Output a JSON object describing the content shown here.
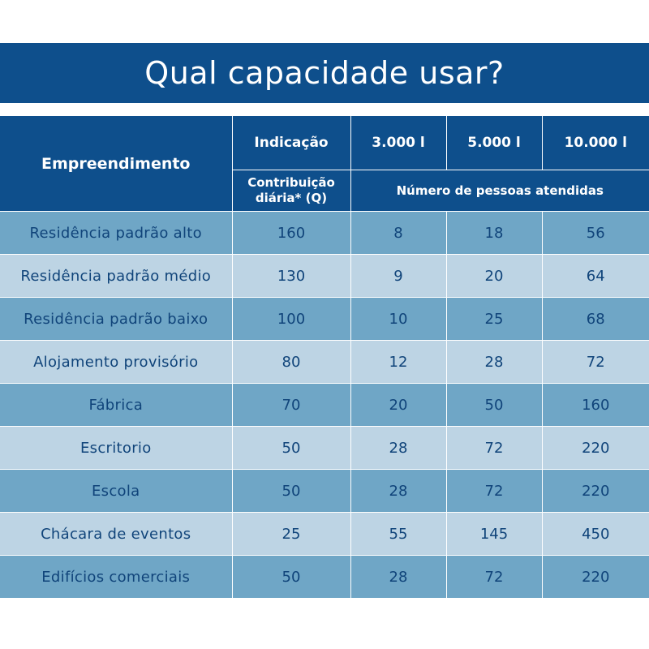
{
  "title": "Qual capacidade usar?",
  "header": {
    "empreendimento": "Empreendimento",
    "indicacao": "Indicação",
    "capacities": [
      "3.000 l",
      "5.000 l",
      "10.000 l"
    ],
    "contribuicao_line1": "Contribuição",
    "contribuicao_line2": "diária* (Q)",
    "numero_pessoas": "Número de pessoas atendidas"
  },
  "rows": [
    {
      "name": "Residência padrão alto",
      "q": "160",
      "c3000": "8",
      "c5000": "18",
      "c10000": "56"
    },
    {
      "name": "Residência padrão médio",
      "q": "130",
      "c3000": "9",
      "c5000": "20",
      "c10000": "64"
    },
    {
      "name": "Residência padrão baixo",
      "q": "100",
      "c3000": "10",
      "c5000": "25",
      "c10000": "68"
    },
    {
      "name": "Alojamento provisório",
      "q": "80",
      "c3000": "12",
      "c5000": "28",
      "c10000": "72"
    },
    {
      "name": "Fábrica",
      "q": "70",
      "c3000": "20",
      "c5000": "50",
      "c10000": "160"
    },
    {
      "name": "Escritorio",
      "q": "50",
      "c3000": "28",
      "c5000": "72",
      "c10000": "220"
    },
    {
      "name": "Escola",
      "q": "50",
      "c3000": "28",
      "c5000": "72",
      "c10000": "220"
    },
    {
      "name": "Chácara de eventos",
      "q": "25",
      "c3000": "55",
      "c5000": "145",
      "c10000": "450"
    },
    {
      "name": "Edifícios comerciais",
      "q": "50",
      "c3000": "28",
      "c5000": "72",
      "c10000": "220"
    }
  ],
  "colors": {
    "header_bg": "#0e4f8c",
    "row_dark": "#6fa6c6",
    "row_light": "#bdd4e4",
    "row_text": "#10447a"
  }
}
